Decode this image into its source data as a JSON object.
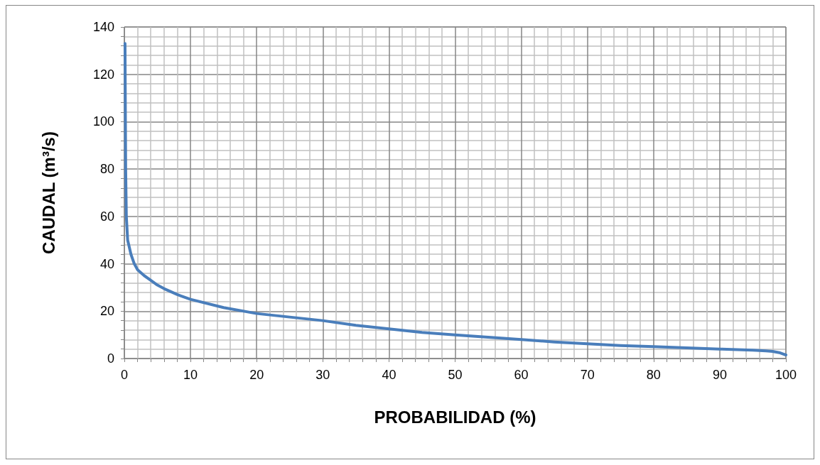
{
  "chart_data": {
    "type": "line",
    "xlabel": "PROBABILIDAD (%)",
    "ylabel": "CAUDAL (m³/s)",
    "x": [
      0.1,
      0.2,
      0.3,
      0.5,
      1,
      1.5,
      2,
      3,
      4,
      5,
      6,
      8,
      10,
      15,
      20,
      25,
      30,
      35,
      40,
      45,
      50,
      55,
      60,
      65,
      70,
      75,
      80,
      85,
      90,
      95,
      97,
      98,
      99,
      99.5,
      100
    ],
    "series": [
      {
        "color": "#4a7ebb",
        "values": [
          133,
          80,
          60,
          50,
          44,
          40,
          37.5,
          35,
          33,
          31,
          29.5,
          27,
          25,
          21.5,
          19,
          17.5,
          16,
          14,
          12.5,
          11,
          10,
          9,
          8,
          7,
          6.2,
          5.5,
          5,
          4.5,
          4,
          3.5,
          3.2,
          3,
          2.5,
          2,
          1.5
        ]
      }
    ],
    "xlim": [
      0,
      100
    ],
    "xticks": [
      0,
      {
        "value": 2,
        "label": null
      },
      {
        "value": 4,
        "label": null
      },
      {
        "value": 6,
        "label": null
      },
      {
        "value": 8,
        "label": null
      },
      10,
      {
        "value": 12,
        "label": null
      },
      {
        "value": 14,
        "label": null
      },
      {
        "value": 16,
        "label": null
      },
      {
        "value": 18,
        "label": null
      },
      20,
      {
        "value": 22,
        "label": null
      },
      {
        "value": 24,
        "label": null
      },
      {
        "value": 26,
        "label": null
      },
      {
        "value": 28,
        "label": null
      },
      30,
      {
        "value": 32,
        "label": null
      },
      {
        "value": 34,
        "label": null
      },
      {
        "value": 36,
        "label": null
      },
      {
        "value": 38,
        "label": null
      },
      40,
      {
        "value": 42,
        "label": null
      },
      {
        "value": 44,
        "label": null
      },
      {
        "value": 46,
        "label": null
      },
      {
        "value": 48,
        "label": null
      },
      50,
      {
        "value": 52,
        "label": null
      },
      {
        "value": 54,
        "label": null
      },
      {
        "value": 56,
        "label": null
      },
      {
        "value": 58,
        "label": null
      },
      60,
      {
        "value": 62,
        "label": null
      },
      {
        "value": 64,
        "label": null
      },
      {
        "value": 66,
        "label": null
      },
      {
        "value": 68,
        "label": null
      },
      70,
      {
        "value": 72,
        "label": null
      },
      {
        "value": 74,
        "label": null
      },
      {
        "value": 76,
        "label": null
      },
      {
        "value": 78,
        "label": null
      },
      80,
      {
        "value": 82,
        "label": null
      },
      {
        "value": 84,
        "label": null
      },
      {
        "value": 86,
        "label": null
      },
      {
        "value": 88,
        "label": null
      },
      90,
      {
        "value": 92,
        "label": null
      },
      {
        "value": 94,
        "label": null
      },
      {
        "value": 96,
        "label": null
      },
      {
        "value": 98,
        "label": null
      },
      100
    ],
    "ylim": [
      0,
      140
    ],
    "yticks": [
      0,
      {
        "value": 4,
        "label": null
      },
      {
        "value": 8,
        "label": null
      },
      {
        "value": 12,
        "label": null
      },
      {
        "value": 16,
        "label": null
      },
      20,
      {
        "value": 24,
        "label": null
      },
      {
        "value": 28,
        "label": null
      },
      {
        "value": 32,
        "label": null
      },
      {
        "value": 36,
        "label": null
      },
      40,
      {
        "value": 44,
        "label": null
      },
      {
        "value": 48,
        "label": null
      },
      {
        "value": 52,
        "label": null
      },
      {
        "value": 56,
        "label": null
      },
      60,
      {
        "value": 64,
        "label": null
      },
      {
        "value": 68,
        "label": null
      },
      {
        "value": 72,
        "label": null
      },
      {
        "value": 76,
        "label": null
      },
      80,
      {
        "value": 84,
        "label": null
      },
      {
        "value": 88,
        "label": null
      },
      {
        "value": 92,
        "label": null
      },
      {
        "value": 96,
        "label": null
      },
      100,
      {
        "value": 104,
        "label": null
      },
      {
        "value": 108,
        "label": null
      },
      {
        "value": 112,
        "label": null
      },
      {
        "value": 116,
        "label": null
      },
      120,
      {
        "value": 124,
        "label": null
      },
      {
        "value": 128,
        "label": null
      },
      {
        "value": 132,
        "label": null
      },
      {
        "value": 136,
        "label": null
      },
      140
    ],
    "grid": true,
    "marker": "none",
    "line_style": "solid"
  }
}
